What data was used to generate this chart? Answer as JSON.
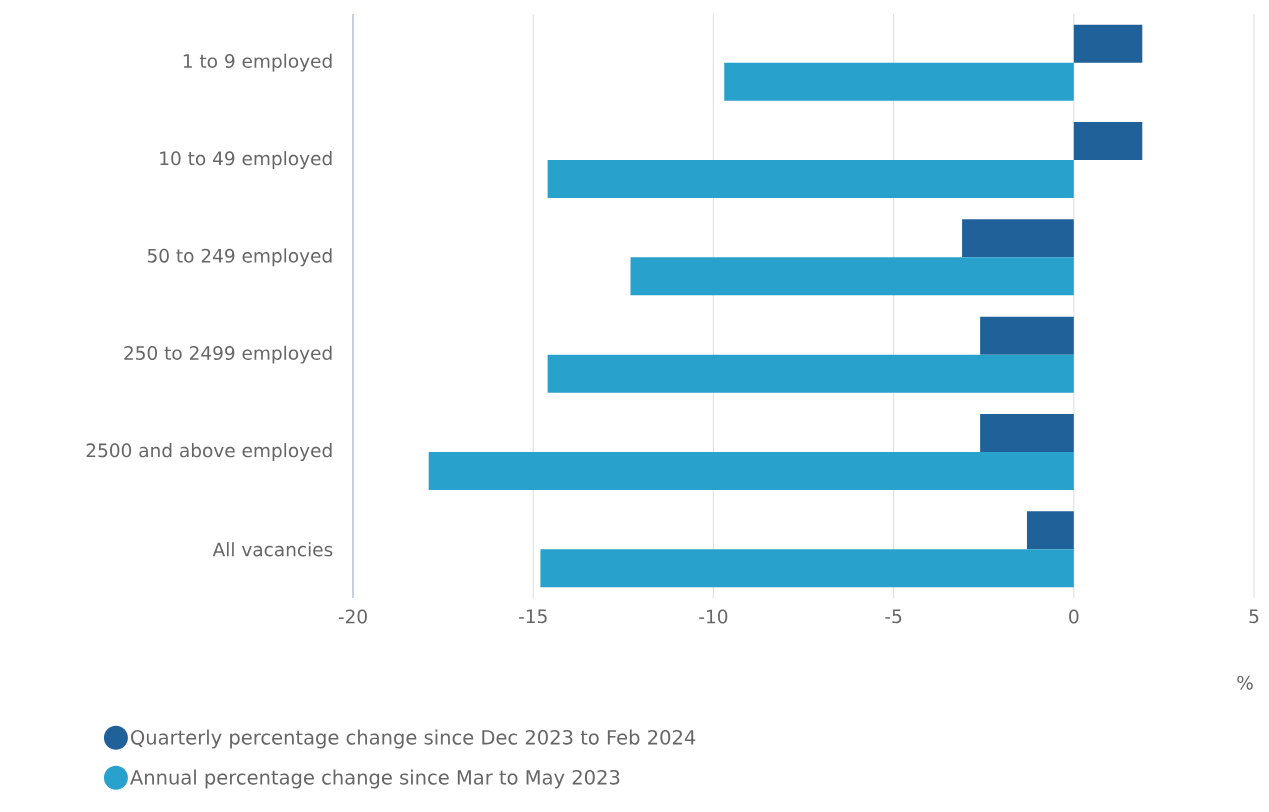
{
  "chart_data": {
    "type": "bar",
    "orientation": "horizontal",
    "xlabel": "%",
    "categories": [
      "1 to 9 employed",
      "10 to 49 employed",
      "50 to 249 employed",
      "250 to 2499 employed",
      "2500 and above employed",
      "All vacancies"
    ],
    "series": [
      {
        "name": "Quarterly percentage change since Dec 2023 to Feb 2024",
        "color": "#21619a",
        "values": [
          1.9,
          1.9,
          -3.1,
          -2.6,
          -2.6,
          -1.3
        ]
      },
      {
        "name": "Annual percentage change since Mar to May 2023",
        "color": "#28a1cc",
        "values": [
          -9.7,
          -14.6,
          -12.3,
          -14.6,
          -17.9,
          -14.8
        ]
      }
    ],
    "xlim": [
      -20,
      5
    ],
    "xticks": [
      -20,
      -15,
      -10,
      -5,
      0,
      5
    ],
    "grid": "x",
    "legend": "bottom"
  }
}
